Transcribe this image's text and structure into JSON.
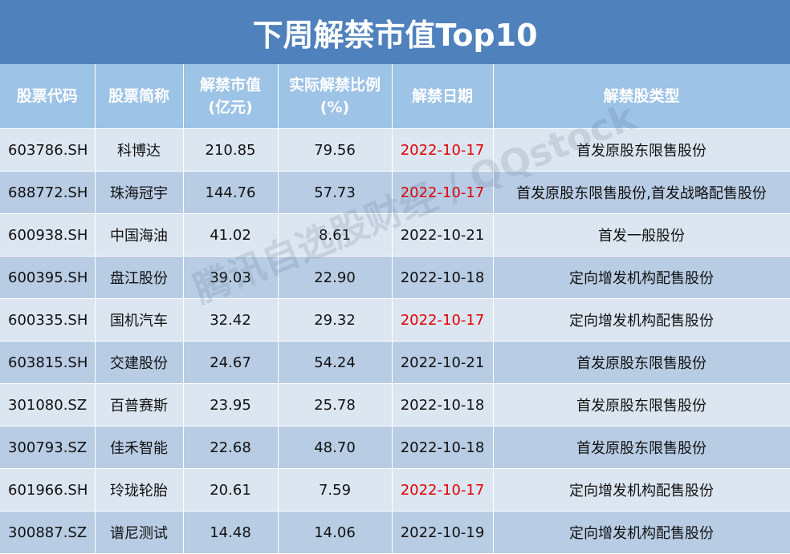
{
  "header": {
    "title": "下周解禁市值Top10"
  },
  "watermark": "腾讯自选股财经 / QQstock",
  "table": {
    "columns": [
      [
        "股票代码"
      ],
      [
        "股票简称"
      ],
      [
        "解禁市值",
        "(亿元)"
      ],
      [
        "实际解禁比例",
        "(%)"
      ],
      [
        "解禁日期"
      ],
      [
        "解禁股类型"
      ]
    ],
    "rows": [
      [
        "603786.SH",
        "科博达",
        "210.85",
        "79.56",
        "2022-10-17",
        "首发原股东限售股份"
      ],
      [
        "688772.SH",
        "珠海冠宇",
        "144.76",
        "57.73",
        "2022-10-17",
        "首发原股东限售股份,首发战略配售股份"
      ],
      [
        "600938.SH",
        "中国海油",
        "41.02",
        "8.61",
        "2022-10-21",
        "首发一般股份"
      ],
      [
        "600395.SH",
        "盘江股份",
        "39.03",
        "22.90",
        "2022-10-18",
        "定向增发机构配售股份"
      ],
      [
        "600335.SH",
        "国机汽车",
        "32.42",
        "29.32",
        "2022-10-17",
        "定向增发机构配售股份"
      ],
      [
        "603815.SH",
        "交建股份",
        "24.67",
        "54.24",
        "2022-10-21",
        "首发原股东限售股份"
      ],
      [
        "301080.SZ",
        "百普赛斯",
        "23.95",
        "25.78",
        "2022-10-18",
        "首发原股东限售股份"
      ],
      [
        "300793.SZ",
        "佳禾智能",
        "22.68",
        "48.70",
        "2022-10-18",
        "首发原股东限售股份"
      ],
      [
        "601966.SH",
        "玲珑轮胎",
        "20.61",
        "7.59",
        "2022-10-17",
        "定向增发机构配售股份"
      ],
      [
        "300887.SZ",
        "谱尼测试",
        "14.48",
        "14.06",
        "2022-10-19",
        "定向增发机构配售股份"
      ]
    ],
    "date_colors": [
      "#e00000",
      "#e00000",
      "#111111",
      "#111111",
      "#e00000",
      "#111111",
      "#111111",
      "#111111",
      "#e00000",
      "#111111"
    ]
  }
}
